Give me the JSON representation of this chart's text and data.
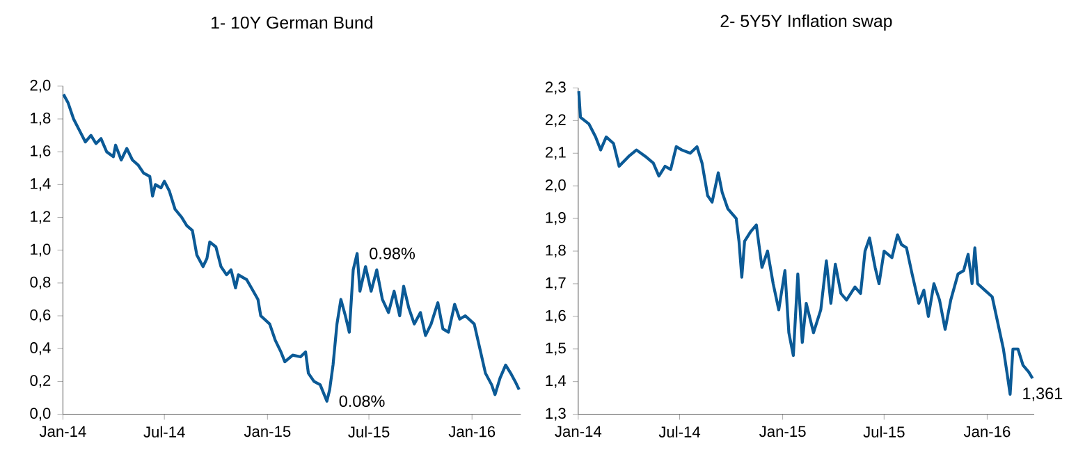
{
  "chart_data": [
    {
      "type": "line",
      "title": "1- 10Y German Bund",
      "x": [
        "2014-01-02",
        "2014-01-10",
        "2014-01-20",
        "2014-02-01",
        "2014-02-10",
        "2014-02-20",
        "2014-03-01",
        "2014-03-10",
        "2014-03-20",
        "2014-04-01",
        "2014-04-05",
        "2014-04-15",
        "2014-04-25",
        "2014-05-05",
        "2014-05-15",
        "2014-05-25",
        "2014-06-05",
        "2014-06-10",
        "2014-06-15",
        "2014-06-25",
        "2014-07-01",
        "2014-07-10",
        "2014-07-20",
        "2014-08-01",
        "2014-08-10",
        "2014-08-20",
        "2014-08-28",
        "2014-09-08",
        "2014-09-15",
        "2014-09-20",
        "2014-10-01",
        "2014-10-10",
        "2014-10-20",
        "2014-10-28",
        "2014-11-05",
        "2014-11-10",
        "2014-11-25",
        "2014-12-05",
        "2014-12-15",
        "2014-12-20",
        "2015-01-05",
        "2015-01-15",
        "2015-01-25",
        "2015-02-01",
        "2015-02-15",
        "2015-03-01",
        "2015-03-10",
        "2015-03-15",
        "2015-03-25",
        "2015-04-05",
        "2015-04-17",
        "2015-04-22",
        "2015-04-28",
        "2015-05-05",
        "2015-05-12",
        "2015-05-20",
        "2015-05-27",
        "2015-06-03",
        "2015-06-10",
        "2015-06-15",
        "2015-06-25",
        "2015-07-05",
        "2015-07-15",
        "2015-07-25",
        "2015-08-05",
        "2015-08-15",
        "2015-08-25",
        "2015-09-01",
        "2015-09-10",
        "2015-09-20",
        "2015-10-01",
        "2015-10-10",
        "2015-10-20",
        "2015-11-01",
        "2015-11-10",
        "2015-11-20",
        "2015-12-01",
        "2015-12-10",
        "2015-12-20",
        "2016-01-05",
        "2016-01-15",
        "2016-01-25",
        "2016-02-05",
        "2016-02-11",
        "2016-02-20",
        "2016-03-01",
        "2016-03-10",
        "2016-03-18",
        "2016-03-25"
      ],
      "series": [
        {
          "color": "#0b5a96",
          "values": [
            1.95,
            1.9,
            1.8,
            1.72,
            1.66,
            1.7,
            1.65,
            1.68,
            1.6,
            1.57,
            1.64,
            1.55,
            1.62,
            1.55,
            1.52,
            1.47,
            1.45,
            1.33,
            1.4,
            1.38,
            1.42,
            1.36,
            1.25,
            1.2,
            1.15,
            1.12,
            0.97,
            0.9,
            0.95,
            1.05,
            1.02,
            0.9,
            0.85,
            0.88,
            0.77,
            0.85,
            0.82,
            0.76,
            0.7,
            0.6,
            0.55,
            0.45,
            0.38,
            0.32,
            0.36,
            0.35,
            0.38,
            0.25,
            0.2,
            0.18,
            0.08,
            0.15,
            0.3,
            0.55,
            0.7,
            0.6,
            0.5,
            0.88,
            0.98,
            0.75,
            0.9,
            0.75,
            0.88,
            0.7,
            0.62,
            0.75,
            0.6,
            0.78,
            0.65,
            0.55,
            0.62,
            0.48,
            0.55,
            0.68,
            0.52,
            0.5,
            0.67,
            0.58,
            0.6,
            0.55,
            0.4,
            0.25,
            0.18,
            0.12,
            0.22,
            0.3,
            0.25,
            0.2,
            0.15
          ]
        }
      ],
      "xlim": [
        "2014-01-01",
        "2016-03-28"
      ],
      "xticks": [
        {
          "value": "2014-01-01",
          "label": "Jan-14"
        },
        {
          "value": "2014-07-01",
          "label": "Jul-14"
        },
        {
          "value": "2015-01-01",
          "label": "Jan-15"
        },
        {
          "value": "2015-07-01",
          "label": "Jul-15"
        },
        {
          "value": "2016-01-01",
          "label": "Jan-16"
        }
      ],
      "ylim": [
        0,
        2
      ],
      "yticks": [
        {
          "value": 0,
          "label": "0,0"
        },
        {
          "value": 0.2,
          "label": "0,2"
        },
        {
          "value": 0.4,
          "label": "0,4"
        },
        {
          "value": 0.6,
          "label": "0,6"
        },
        {
          "value": 0.8,
          "label": "0,8"
        },
        {
          "value": 1.0,
          "label": "1,0"
        },
        {
          "value": 1.2,
          "label": "1,2"
        },
        {
          "value": 1.4,
          "label": "1,4"
        },
        {
          "value": 1.6,
          "label": "1,6"
        },
        {
          "value": 1.8,
          "label": "1,8"
        },
        {
          "value": 2.0,
          "label": "2,0"
        }
      ],
      "annotations": [
        {
          "text": "0.98%",
          "x": "2015-06-10",
          "y": 0.98
        },
        {
          "text": "0.08%",
          "x": "2015-04-17",
          "y": 0.08
        }
      ]
    },
    {
      "type": "line",
      "title": "2- 5Y5Y Inflation swap",
      "x": [
        "2014-01-02",
        "2014-01-05",
        "2014-01-20",
        "2014-02-01",
        "2014-02-10",
        "2014-02-20",
        "2014-03-05",
        "2014-03-15",
        "2014-04-01",
        "2014-04-15",
        "2014-05-01",
        "2014-05-15",
        "2014-05-25",
        "2014-06-05",
        "2014-06-15",
        "2014-06-25",
        "2014-07-05",
        "2014-07-20",
        "2014-08-01",
        "2014-08-10",
        "2014-08-20",
        "2014-08-28",
        "2014-09-08",
        "2014-09-15",
        "2014-09-25",
        "2014-10-10",
        "2014-10-15",
        "2014-10-20",
        "2014-10-25",
        "2014-11-05",
        "2014-11-15",
        "2014-11-25",
        "2014-12-05",
        "2014-12-15",
        "2014-12-25",
        "2015-01-05",
        "2015-01-12",
        "2015-01-20",
        "2015-01-28",
        "2015-02-05",
        "2015-02-12",
        "2015-02-25",
        "2015-03-10",
        "2015-03-20",
        "2015-03-28",
        "2015-04-05",
        "2015-04-15",
        "2015-04-25",
        "2015-05-10",
        "2015-05-20",
        "2015-05-28",
        "2015-06-05",
        "2015-06-15",
        "2015-06-22",
        "2015-07-01",
        "2015-07-15",
        "2015-07-25",
        "2015-08-01",
        "2015-08-10",
        "2015-08-20",
        "2015-09-01",
        "2015-09-10",
        "2015-09-18",
        "2015-09-28",
        "2015-10-08",
        "2015-10-18",
        "2015-10-28",
        "2015-11-10",
        "2015-11-20",
        "2015-11-28",
        "2015-12-05",
        "2015-12-10",
        "2015-12-15",
        "2015-12-28",
        "2016-01-10",
        "2016-01-20",
        "2016-01-30",
        "2016-02-06",
        "2016-02-11",
        "2016-02-16",
        "2016-02-25",
        "2016-03-05",
        "2016-03-15",
        "2016-03-22"
      ],
      "series": [
        {
          "color": "#0b5a96",
          "values": [
            2.29,
            2.21,
            2.19,
            2.15,
            2.11,
            2.15,
            2.13,
            2.06,
            2.09,
            2.11,
            2.09,
            2.07,
            2.03,
            2.06,
            2.05,
            2.12,
            2.11,
            2.1,
            2.12,
            2.07,
            1.97,
            1.95,
            2.04,
            1.98,
            1.93,
            1.9,
            1.83,
            1.72,
            1.83,
            1.86,
            1.88,
            1.75,
            1.8,
            1.7,
            1.62,
            1.74,
            1.55,
            1.48,
            1.73,
            1.52,
            1.64,
            1.55,
            1.62,
            1.77,
            1.64,
            1.76,
            1.67,
            1.65,
            1.69,
            1.67,
            1.8,
            1.84,
            1.75,
            1.7,
            1.8,
            1.78,
            1.85,
            1.82,
            1.81,
            1.73,
            1.64,
            1.68,
            1.6,
            1.7,
            1.65,
            1.56,
            1.65,
            1.73,
            1.74,
            1.79,
            1.7,
            1.81,
            1.7,
            1.68,
            1.66,
            1.58,
            1.5,
            1.42,
            1.361,
            1.5,
            1.5,
            1.45,
            1.43,
            1.41
          ]
        }
      ],
      "xlim": [
        "2014-01-01",
        "2016-03-25"
      ],
      "xticks": [
        {
          "value": "2014-01-01",
          "label": "Jan-14"
        },
        {
          "value": "2014-07-01",
          "label": "Jul-14"
        },
        {
          "value": "2015-01-01",
          "label": "Jan-15"
        },
        {
          "value": "2015-07-01",
          "label": "Jul-15"
        },
        {
          "value": "2016-01-01",
          "label": "Jan-16"
        }
      ],
      "ylim": [
        1.3,
        2.3
      ],
      "yticks": [
        {
          "value": 1.3,
          "label": "1,3"
        },
        {
          "value": 1.4,
          "label": "1,4"
        },
        {
          "value": 1.5,
          "label": "1,5"
        },
        {
          "value": 1.6,
          "label": "1,6"
        },
        {
          "value": 1.7,
          "label": "1,7"
        },
        {
          "value": 1.8,
          "label": "1,8"
        },
        {
          "value": 1.9,
          "label": "1,9"
        },
        {
          "value": 2.0,
          "label": "2,0"
        },
        {
          "value": 2.1,
          "label": "2,1"
        },
        {
          "value": 2.2,
          "label": "2,2"
        },
        {
          "value": 2.3,
          "label": "2,3"
        }
      ],
      "annotations": [
        {
          "text": "1,361",
          "x": "2016-02-11",
          "y": 1.361
        }
      ]
    }
  ]
}
